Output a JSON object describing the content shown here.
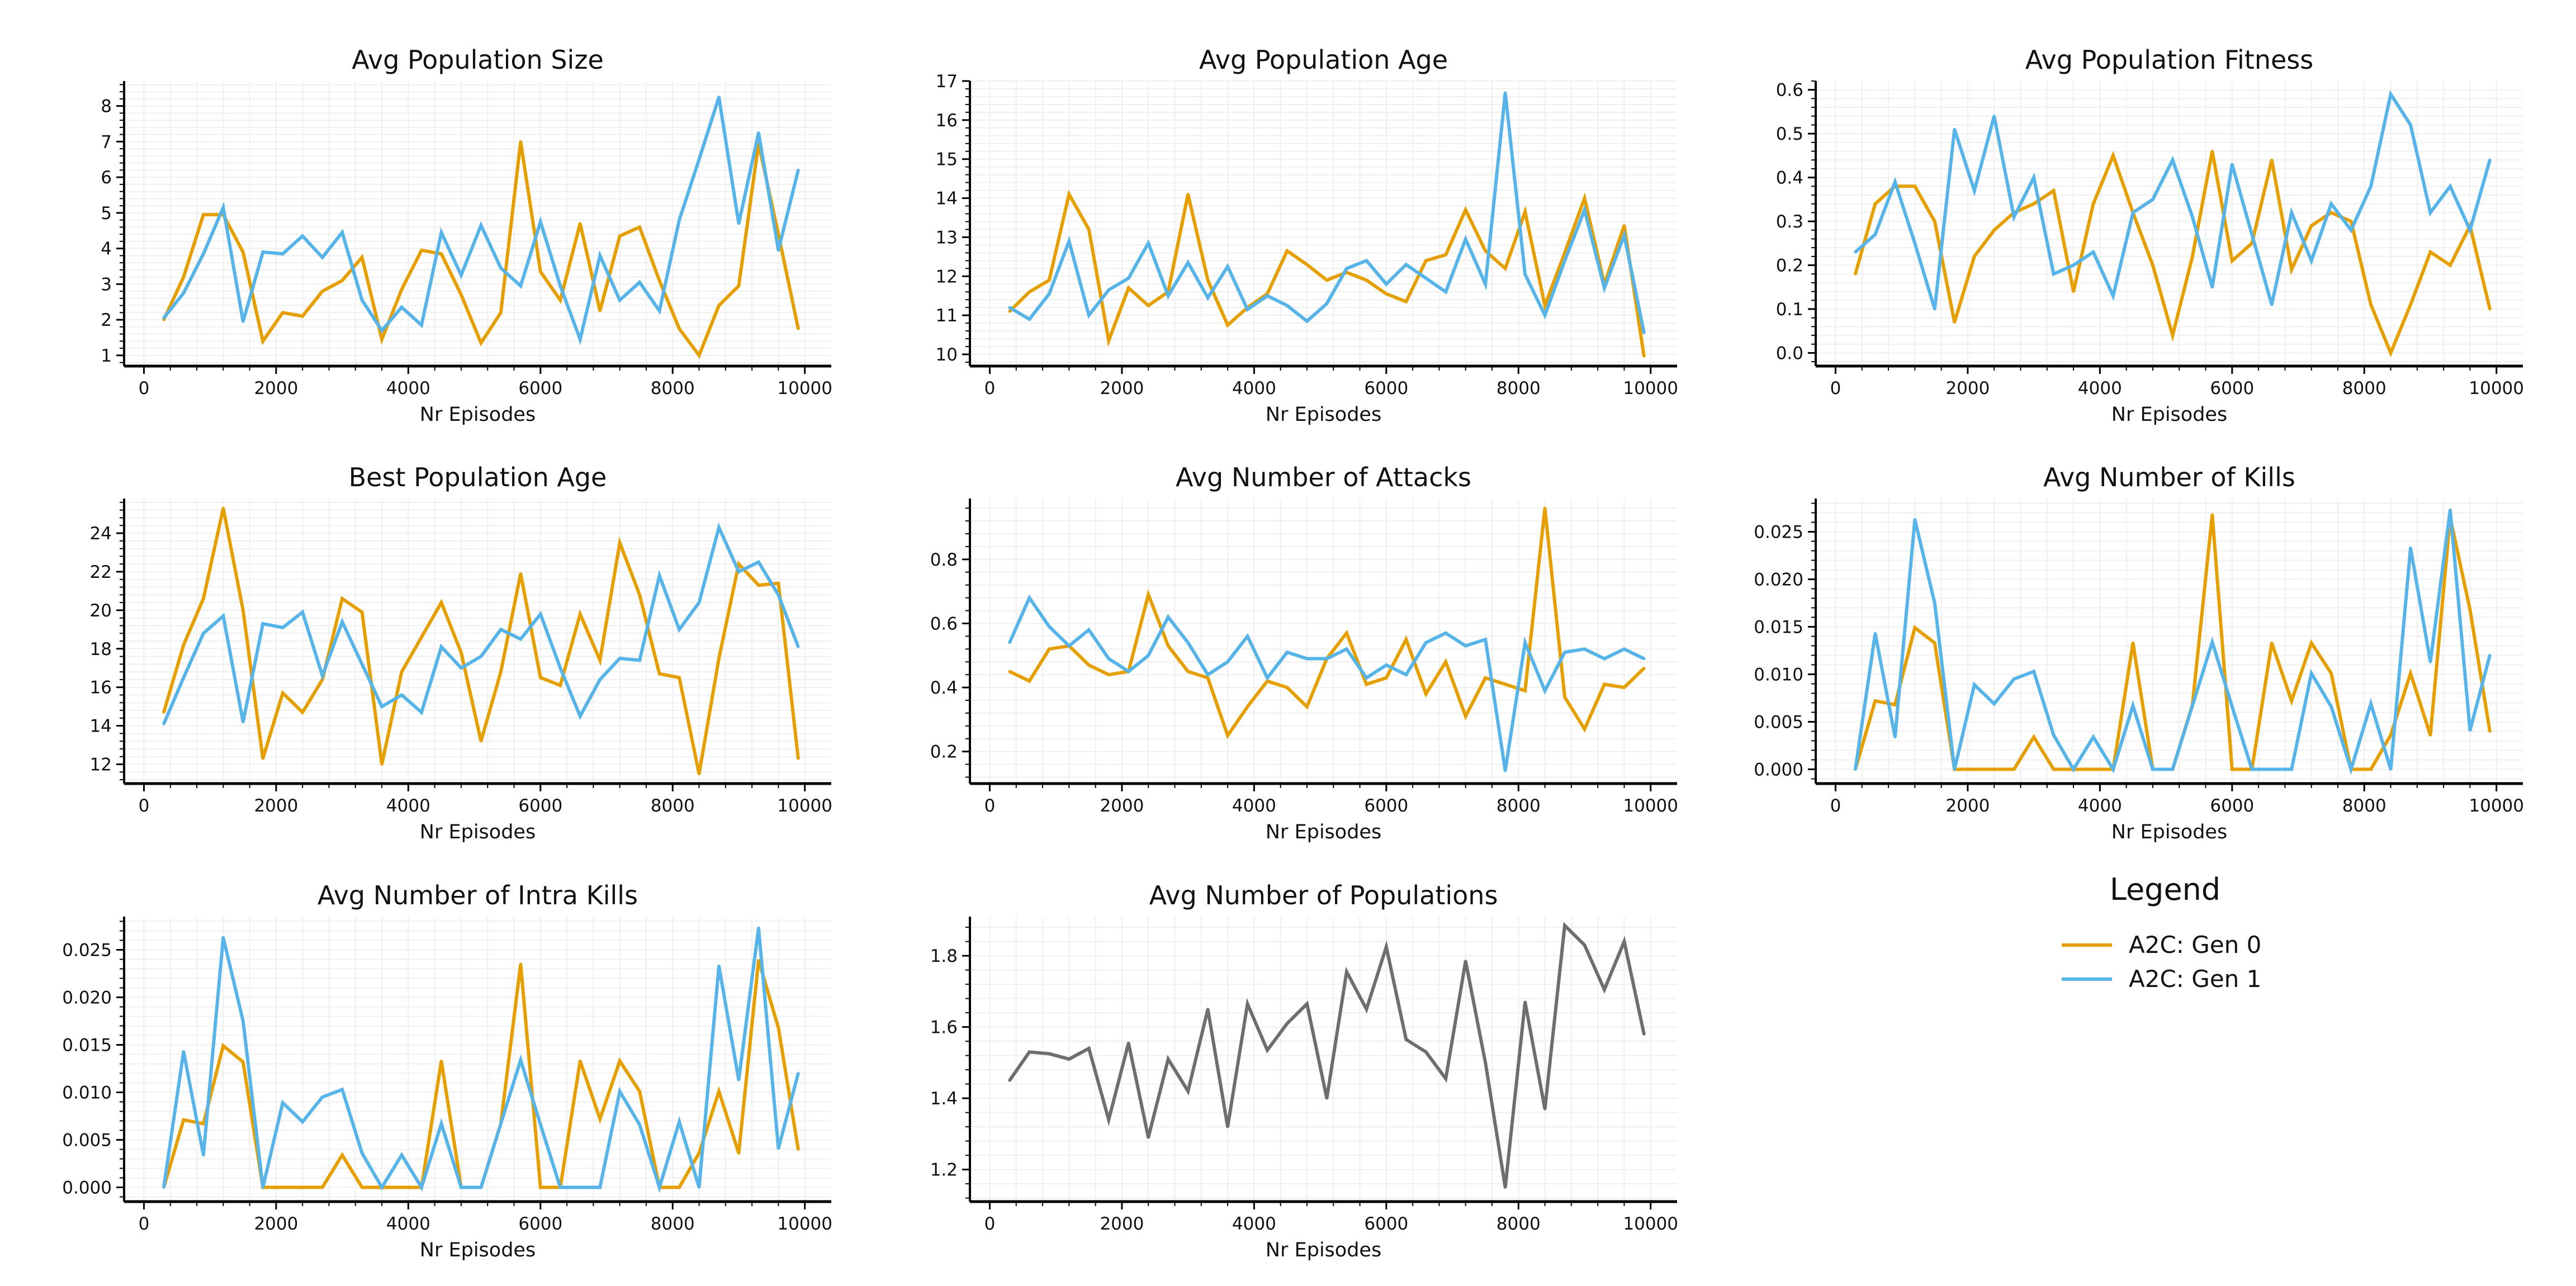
{
  "colors": {
    "gen0": "#E69F00",
    "gen1": "#56B4E9",
    "single": "#6e6e6e",
    "axis": "#000000",
    "grid": "#e6e6e6"
  },
  "legend": {
    "title": "Legend",
    "items": [
      {
        "label": "A2C: Gen 0",
        "color": "#E69F00"
      },
      {
        "label": "A2C: Gen 1",
        "color": "#56B4E9"
      }
    ]
  },
  "chart_data": [
    {
      "type": "line",
      "title": "Avg Population Size",
      "xlabel": "Nr Episodes",
      "ylabel": "",
      "xlim": [
        -300,
        10400
      ],
      "ylim": [
        0.7,
        8.7
      ],
      "xticks": [
        0,
        2000,
        4000,
        6000,
        8000,
        10000
      ],
      "yticks": [
        1,
        2,
        3,
        4,
        5,
        6,
        7,
        8
      ],
      "grid": true,
      "x": [
        300,
        600,
        900,
        1200,
        1500,
        1800,
        2100,
        2400,
        2700,
        3000,
        3300,
        3600,
        3900,
        4200,
        4500,
        4800,
        5100,
        5400,
        5700,
        6000,
        6300,
        6600,
        6900,
        7200,
        7500,
        7800,
        8100,
        8400,
        8700,
        9000,
        9300,
        9600,
        9900
      ],
      "series": [
        {
          "name": "A2C: Gen 0",
          "color": "#E69F00",
          "values": [
            2.0,
            3.2,
            4.95,
            4.95,
            3.9,
            1.4,
            2.2,
            2.1,
            2.8,
            3.1,
            3.75,
            1.45,
            2.85,
            3.95,
            3.85,
            2.7,
            1.35,
            2.2,
            7.0,
            3.35,
            2.55,
            4.7,
            2.25,
            4.35,
            4.6,
            3.1,
            1.75,
            1.0,
            2.4,
            2.95,
            6.95,
            4.4,
            1.75
          ]
        },
        {
          "name": "A2C: Gen 1",
          "color": "#56B4E9",
          "values": [
            2.05,
            2.75,
            3.85,
            5.15,
            1.95,
            3.9,
            3.85,
            4.35,
            3.75,
            4.45,
            2.55,
            1.7,
            2.35,
            1.85,
            4.45,
            3.25,
            4.65,
            3.45,
            2.95,
            4.75,
            2.95,
            1.45,
            3.8,
            2.55,
            3.05,
            2.25,
            4.8,
            6.5,
            8.25,
            4.7,
            7.25,
            3.95,
            6.2
          ]
        }
      ]
    },
    {
      "type": "line",
      "title": "Avg Population Age",
      "xlabel": "Nr Episodes",
      "ylabel": "",
      "xlim": [
        -300,
        10400
      ],
      "ylim": [
        9.7,
        17.0
      ],
      "xticks": [
        0,
        2000,
        4000,
        6000,
        8000,
        10000
      ],
      "yticks": [
        10,
        11,
        12,
        13,
        14,
        15,
        16,
        17
      ],
      "grid": true,
      "x": [
        300,
        600,
        900,
        1200,
        1500,
        1800,
        2100,
        2400,
        2700,
        3000,
        3300,
        3600,
        3900,
        4200,
        4500,
        4800,
        5100,
        5400,
        5700,
        6000,
        6300,
        6600,
        6900,
        7200,
        7500,
        7800,
        8100,
        8400,
        8700,
        9000,
        9300,
        9600,
        9900
      ],
      "series": [
        {
          "name": "A2C: Gen 0",
          "color": "#E69F00",
          "values": [
            11.1,
            11.6,
            11.9,
            14.1,
            13.2,
            10.35,
            11.7,
            11.25,
            11.6,
            14.1,
            11.9,
            10.75,
            11.2,
            11.55,
            12.65,
            12.3,
            11.9,
            12.1,
            11.9,
            11.55,
            11.35,
            12.4,
            12.55,
            13.7,
            12.65,
            12.2,
            13.65,
            11.25,
            12.6,
            14.0,
            11.8,
            13.3,
            9.95
          ]
        },
        {
          "name": "A2C: Gen 1",
          "color": "#56B4E9",
          "values": [
            11.2,
            10.9,
            11.55,
            12.9,
            11.0,
            11.65,
            11.95,
            12.85,
            11.5,
            12.35,
            11.45,
            12.25,
            11.15,
            11.5,
            11.25,
            10.85,
            11.3,
            12.2,
            12.4,
            11.8,
            12.3,
            11.95,
            11.6,
            12.95,
            11.8,
            16.7,
            12.05,
            11.0,
            12.4,
            13.7,
            11.7,
            13.05,
            10.55
          ]
        }
      ]
    },
    {
      "type": "line",
      "title": "Avg Population Fitness",
      "xlabel": "Nr Episodes",
      "ylabel": "",
      "xlim": [
        -300,
        10400
      ],
      "ylim": [
        -0.03,
        0.62
      ],
      "xticks": [
        0,
        2000,
        4000,
        6000,
        8000,
        10000
      ],
      "yticks": [
        0.0,
        0.1,
        0.2,
        0.3,
        0.4,
        0.5,
        0.6
      ],
      "ytick_labels": [
        "0.0",
        "0.1",
        "0.2",
        "0.3",
        "0.4",
        "0.5",
        "0.6"
      ],
      "grid": true,
      "x": [
        300,
        600,
        900,
        1200,
        1500,
        1800,
        2100,
        2400,
        2700,
        3000,
        3300,
        3600,
        3900,
        4200,
        4500,
        4800,
        5100,
        5400,
        5700,
        6000,
        6300,
        6600,
        6900,
        7200,
        7500,
        7800,
        8100,
        8400,
        8700,
        9000,
        9300,
        9600,
        9900
      ],
      "series": [
        {
          "name": "A2C: Gen 0",
          "color": "#E69F00",
          "values": [
            0.18,
            0.34,
            0.38,
            0.38,
            0.3,
            0.07,
            0.22,
            0.28,
            0.32,
            0.34,
            0.37,
            0.14,
            0.34,
            0.45,
            0.32,
            0.2,
            0.04,
            0.22,
            0.46,
            0.21,
            0.25,
            0.44,
            0.19,
            0.29,
            0.32,
            0.3,
            0.11,
            0.0,
            0.11,
            0.23,
            0.2,
            0.29,
            0.1
          ]
        },
        {
          "name": "A2C: Gen 1",
          "color": "#56B4E9",
          "values": [
            0.23,
            0.27,
            0.39,
            0.25,
            0.1,
            0.51,
            0.37,
            0.54,
            0.31,
            0.4,
            0.18,
            0.2,
            0.23,
            0.13,
            0.32,
            0.35,
            0.44,
            0.31,
            0.15,
            0.43,
            0.27,
            0.11,
            0.32,
            0.21,
            0.34,
            0.28,
            0.38,
            0.59,
            0.52,
            0.32,
            0.38,
            0.28,
            0.44
          ]
        }
      ]
    },
    {
      "type": "line",
      "title": "Best Population Age",
      "xlabel": "Nr Episodes",
      "ylabel": "",
      "xlim": [
        -300,
        10400
      ],
      "ylim": [
        11.0,
        25.8
      ],
      "xticks": [
        0,
        2000,
        4000,
        6000,
        8000,
        10000
      ],
      "yticks": [
        12,
        14,
        16,
        18,
        20,
        22,
        24
      ],
      "grid": true,
      "x": [
        300,
        600,
        900,
        1200,
        1500,
        1800,
        2100,
        2400,
        2700,
        3000,
        3300,
        3600,
        3900,
        4200,
        4500,
        4800,
        5100,
        5400,
        5700,
        6000,
        6300,
        6600,
        6900,
        7200,
        7500,
        7800,
        8100,
        8400,
        8700,
        9000,
        9300,
        9600,
        9900
      ],
      "series": [
        {
          "name": "A2C: Gen 0",
          "color": "#E69F00",
          "values": [
            14.7,
            18.2,
            20.6,
            25.3,
            20.0,
            12.3,
            15.7,
            14.7,
            16.4,
            20.6,
            19.9,
            12.0,
            16.8,
            18.6,
            20.4,
            17.8,
            13.2,
            16.8,
            21.9,
            16.5,
            16.1,
            19.8,
            17.4,
            23.5,
            20.8,
            16.7,
            16.5,
            11.5,
            17.5,
            22.4,
            21.3,
            21.4,
            12.3
          ]
        },
        {
          "name": "A2C: Gen 1",
          "color": "#56B4E9",
          "values": [
            14.1,
            16.5,
            18.8,
            19.7,
            14.2,
            19.3,
            19.1,
            19.9,
            16.6,
            19.4,
            17.2,
            15.0,
            15.6,
            14.7,
            18.1,
            17.0,
            17.6,
            19.0,
            18.5,
            19.8,
            17.0,
            14.5,
            16.4,
            17.5,
            17.4,
            21.8,
            19.0,
            20.4,
            24.3,
            22.0,
            22.5,
            20.8,
            18.1
          ]
        }
      ]
    },
    {
      "type": "line",
      "title": "Avg Number of Attacks",
      "xlabel": "Nr Episodes",
      "ylabel": "",
      "xlim": [
        -300,
        10400
      ],
      "ylim": [
        0.1,
        0.99
      ],
      "xticks": [
        0,
        2000,
        4000,
        6000,
        8000,
        10000
      ],
      "yticks": [
        0.2,
        0.4,
        0.6,
        0.8
      ],
      "ytick_labels": [
        "0.2",
        "0.4",
        "0.6",
        "0.8"
      ],
      "grid": true,
      "x": [
        300,
        600,
        900,
        1200,
        1500,
        1800,
        2100,
        2400,
        2700,
        3000,
        3300,
        3600,
        3900,
        4200,
        4500,
        4800,
        5100,
        5400,
        5700,
        6000,
        6300,
        6600,
        6900,
        7200,
        7500,
        7800,
        8100,
        8400,
        8700,
        9000,
        9300,
        9600,
        9900
      ],
      "series": [
        {
          "name": "A2C: Gen 0",
          "color": "#E69F00",
          "values": [
            0.45,
            0.42,
            0.52,
            0.53,
            0.47,
            0.44,
            0.45,
            0.69,
            0.53,
            0.45,
            0.43,
            0.25,
            0.34,
            0.42,
            0.4,
            0.34,
            0.49,
            0.57,
            0.41,
            0.43,
            0.55,
            0.38,
            0.48,
            0.31,
            0.43,
            0.41,
            0.39,
            0.96,
            0.37,
            0.27,
            0.41,
            0.4,
            0.46
          ]
        },
        {
          "name": "A2C: Gen 1",
          "color": "#56B4E9",
          "values": [
            0.54,
            0.68,
            0.59,
            0.53,
            0.58,
            0.49,
            0.45,
            0.5,
            0.62,
            0.54,
            0.44,
            0.48,
            0.56,
            0.43,
            0.51,
            0.49,
            0.49,
            0.52,
            0.43,
            0.47,
            0.44,
            0.54,
            0.57,
            0.53,
            0.55,
            0.14,
            0.54,
            0.39,
            0.51,
            0.52,
            0.49,
            0.52,
            0.49
          ]
        }
      ]
    },
    {
      "type": "line",
      "title": "Avg Number of Kills",
      "xlabel": "Nr Episodes",
      "ylabel": "",
      "xlim": [
        -300,
        10400
      ],
      "ylim": [
        -0.0015,
        0.0285
      ],
      "xticks": [
        0,
        2000,
        4000,
        6000,
        8000,
        10000
      ],
      "yticks": [
        0.0,
        0.005,
        0.01,
        0.015,
        0.02,
        0.025
      ],
      "ytick_labels": [
        "0.000",
        "0.005",
        "0.010",
        "0.015",
        "0.020",
        "0.025"
      ],
      "grid": true,
      "x": [
        300,
        600,
        900,
        1200,
        1500,
        1800,
        2100,
        2400,
        2700,
        3000,
        3300,
        3600,
        3900,
        4200,
        4500,
        4800,
        5100,
        5400,
        5700,
        6000,
        6300,
        6600,
        6900,
        7200,
        7500,
        7800,
        8100,
        8400,
        8700,
        9000,
        9300,
        9600,
        9900
      ],
      "series": [
        {
          "name": "A2C: Gen 0",
          "color": "#E69F00",
          "values": [
            0.0,
            0.0072,
            0.0068,
            0.0149,
            0.0133,
            0.0,
            0.0,
            0.0,
            0.0,
            0.0034,
            0.0,
            0.0,
            0.0,
            0.0,
            0.0133,
            0.0,
            0.0,
            0.0068,
            0.0268,
            0.0,
            0.0,
            0.0133,
            0.0072,
            0.0133,
            0.0101,
            0.0,
            0.0,
            0.0036,
            0.0101,
            0.0036,
            0.0265,
            0.0168,
            0.004
          ]
        },
        {
          "name": "A2C: Gen 1",
          "color": "#56B4E9",
          "values": [
            0.0,
            0.0143,
            0.0034,
            0.0263,
            0.0175,
            0.0,
            0.0089,
            0.0069,
            0.0095,
            0.0103,
            0.0036,
            0.0,
            0.0034,
            0.0,
            0.0067,
            0.0,
            0.0,
            0.0067,
            0.0134,
            0.0066,
            0.0,
            0.0,
            0.0,
            0.0101,
            0.0066,
            0.0,
            0.0069,
            0.0,
            0.0233,
            0.0113,
            0.0273,
            0.0041,
            0.012
          ]
        }
      ]
    },
    {
      "type": "line",
      "title": "Avg Number of Intra Kills",
      "xlabel": "Nr Episodes",
      "ylabel": "",
      "xlim": [
        -300,
        10400
      ],
      "ylim": [
        -0.0015,
        0.0285
      ],
      "xticks": [
        0,
        2000,
        4000,
        6000,
        8000,
        10000
      ],
      "yticks": [
        0.0,
        0.005,
        0.01,
        0.015,
        0.02,
        0.025
      ],
      "ytick_labels": [
        "0.000",
        "0.005",
        "0.010",
        "0.015",
        "0.020",
        "0.025"
      ],
      "grid": true,
      "x": [
        300,
        600,
        900,
        1200,
        1500,
        1800,
        2100,
        2400,
        2700,
        3000,
        3300,
        3600,
        3900,
        4200,
        4500,
        4800,
        5100,
        5400,
        5700,
        6000,
        6300,
        6600,
        6900,
        7200,
        7500,
        7800,
        8100,
        8400,
        8700,
        9000,
        9300,
        9600,
        9900
      ],
      "series": [
        {
          "name": "A2C: Gen 0",
          "color": "#E69F00",
          "values": [
            0.0,
            0.0071,
            0.0067,
            0.0149,
            0.0132,
            0.0,
            0.0,
            0.0,
            0.0,
            0.0034,
            0.0,
            0.0,
            0.0,
            0.0,
            0.0133,
            0.0,
            0.0,
            0.0067,
            0.0235,
            0.0,
            0.0,
            0.0133,
            0.0072,
            0.0133,
            0.0101,
            0.0,
            0.0,
            0.0036,
            0.0101,
            0.0036,
            0.0239,
            0.0168,
            0.004
          ]
        },
        {
          "name": "A2C: Gen 1",
          "color": "#56B4E9",
          "values": [
            0.0,
            0.0143,
            0.0034,
            0.0263,
            0.0175,
            0.0,
            0.0089,
            0.0069,
            0.0095,
            0.0103,
            0.0036,
            0.0,
            0.0034,
            0.0,
            0.0067,
            0.0,
            0.0,
            0.0067,
            0.0134,
            0.0066,
            0.0,
            0.0,
            0.0,
            0.0101,
            0.0066,
            0.0,
            0.0069,
            0.0,
            0.0233,
            0.0113,
            0.0273,
            0.0041,
            0.012
          ]
        }
      ]
    },
    {
      "type": "line",
      "title": "Avg Number of Populations",
      "xlabel": "Nr Episodes",
      "ylabel": "",
      "xlim": [
        -300,
        10400
      ],
      "ylim": [
        1.11,
        1.91
      ],
      "xticks": [
        0,
        2000,
        4000,
        6000,
        8000,
        10000
      ],
      "yticks": [
        1.2,
        1.4,
        1.6,
        1.8
      ],
      "ytick_labels": [
        "1.2",
        "1.4",
        "1.6",
        "1.8"
      ],
      "grid": true,
      "x": [
        300,
        600,
        900,
        1200,
        1500,
        1800,
        2100,
        2400,
        2700,
        3000,
        3300,
        3600,
        3900,
        4200,
        4500,
        4800,
        5100,
        5400,
        5700,
        6000,
        6300,
        6600,
        6900,
        7200,
        7500,
        7800,
        8100,
        8400,
        8700,
        9000,
        9300,
        9600,
        9900
      ],
      "series": [
        {
          "name": "",
          "color": "#6e6e6e",
          "values": [
            1.45,
            1.53,
            1.525,
            1.51,
            1.54,
            1.34,
            1.555,
            1.29,
            1.51,
            1.42,
            1.65,
            1.32,
            1.665,
            1.535,
            1.61,
            1.665,
            1.4,
            1.755,
            1.65,
            1.825,
            1.565,
            1.53,
            1.455,
            1.785,
            1.5,
            1.15,
            1.67,
            1.37,
            1.885,
            1.83,
            1.705,
            1.84,
            1.58
          ]
        }
      ]
    }
  ]
}
